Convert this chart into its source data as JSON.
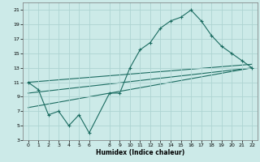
{
  "title": "",
  "xlabel": "Humidex (Indice chaleur)",
  "bg_color": "#cceae8",
  "grid_color": "#aed4d2",
  "line_color": "#1a6b60",
  "xlim": [
    -0.5,
    22.5
  ],
  "ylim": [
    3,
    22
  ],
  "yticks": [
    3,
    5,
    7,
    9,
    11,
    13,
    15,
    17,
    19,
    21
  ],
  "xticks": [
    0,
    1,
    2,
    3,
    4,
    5,
    6,
    8,
    9,
    10,
    11,
    12,
    13,
    14,
    15,
    16,
    17,
    18,
    19,
    20,
    21,
    22
  ],
  "series1_x": [
    0,
    1,
    2,
    3,
    4,
    5,
    6,
    8,
    9,
    10,
    11,
    12,
    13,
    14,
    15,
    16,
    17,
    18,
    19,
    20,
    21,
    22
  ],
  "series1_y": [
    11,
    10,
    6.5,
    7,
    5,
    6.5,
    4,
    9.5,
    9.5,
    13,
    15.5,
    16.5,
    18.5,
    19.5,
    20,
    21,
    19.5,
    17.5,
    16,
    15,
    14,
    13
  ],
  "line1_x": [
    0,
    22
  ],
  "line1_y": [
    11,
    13.5
  ],
  "line2_x": [
    0,
    22
  ],
  "line2_y": [
    9.5,
    13
  ],
  "line3_x": [
    0,
    22
  ],
  "line3_y": [
    7.5,
    13
  ]
}
